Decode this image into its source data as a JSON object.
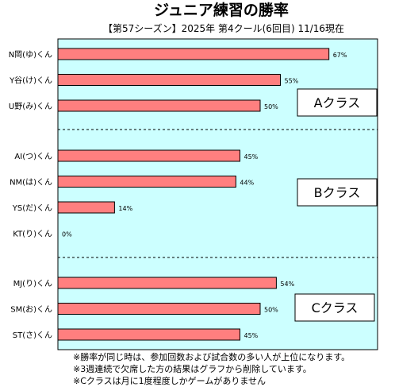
{
  "chart_data": {
    "type": "bar",
    "title": "ジュニア練習の勝率",
    "subtitle": "【第57シーズン】2025年 第4クール(6回目) 11/16現在",
    "bar_color": "#ff7f7f",
    "plot_background": "#ccffff",
    "xlim": [
      0,
      75
    ],
    "groups": [
      {
        "label": "Aクラス",
        "players": [
          {
            "name": "N岡(ゆ)くん",
            "value": 67,
            "value_label": "67%"
          },
          {
            "name": "Y谷(け)くん",
            "value": 55,
            "value_label": "55%"
          },
          {
            "name": "U野(み)くん",
            "value": 50,
            "value_label": "50%"
          }
        ]
      },
      {
        "label": "Bクラス",
        "players": [
          {
            "name": "AI(つ)くん",
            "value": 45,
            "value_label": "45%"
          },
          {
            "name": "NM(は)くん",
            "value": 44,
            "value_label": "44%"
          },
          {
            "name": "YS(だ)くん",
            "value": 14,
            "value_label": "14%"
          },
          {
            "name": "KT(り)くん",
            "value": 0,
            "value_label": "0%"
          }
        ]
      },
      {
        "label": "Cクラス",
        "players": [
          {
            "name": "MJ(り)くん",
            "value": 54,
            "value_label": "54%"
          },
          {
            "name": "SM(お)くん",
            "value": 50,
            "value_label": "50%"
          },
          {
            "name": "ST(さ)くん",
            "value": 45,
            "value_label": "45%"
          }
        ]
      }
    ]
  },
  "notes": [
    "※勝率が同じ時は、参加回数および試合数の多い人が上位になります。",
    "※3週連続で欠席した方の結果はグラフから削除しています。",
    "※Cクラスは月に1度程度しかゲームがありません"
  ]
}
